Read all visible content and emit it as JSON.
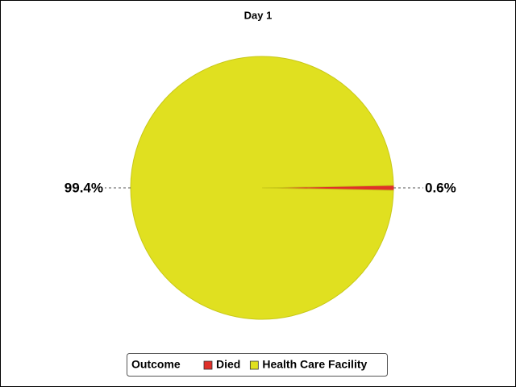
{
  "chart_data": {
    "type": "pie",
    "title": "Day 1",
    "legend_title": "Outcome",
    "categories": [
      "Died",
      "Health Care Facility"
    ],
    "values": [
      0.6,
      99.4
    ],
    "value_labels": [
      "0.6%",
      "99.4%"
    ],
    "colors": [
      "#e0302a",
      "#e0e020"
    ]
  }
}
